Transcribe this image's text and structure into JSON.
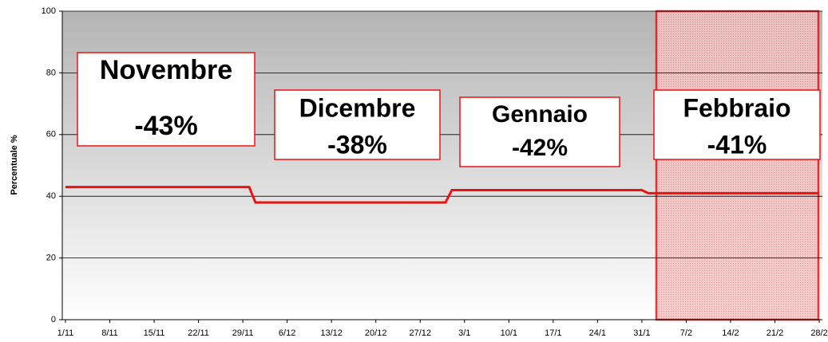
{
  "chart_data": {
    "type": "line",
    "y_label": "Percentuale %",
    "color": "#ee1111",
    "ylim": [
      0,
      100
    ],
    "yticks": [
      0,
      20,
      40,
      60,
      80,
      100
    ],
    "grid": true,
    "categories": [
      "1/11",
      null,
      null,
      null,
      null,
      null,
      null,
      "8/11",
      null,
      null,
      null,
      null,
      null,
      null,
      "15/11",
      null,
      null,
      null,
      null,
      null,
      null,
      "22/11",
      null,
      null,
      null,
      null,
      null,
      null,
      "29/11",
      null,
      null,
      null,
      null,
      null,
      null,
      "6/12",
      null,
      null,
      null,
      null,
      null,
      null,
      "13/12",
      null,
      null,
      null,
      null,
      null,
      null,
      "20/12",
      null,
      null,
      null,
      null,
      null,
      null,
      "27/12",
      null,
      null,
      null,
      null,
      null,
      null,
      "3/1",
      null,
      null,
      null,
      null,
      null,
      null,
      "10/1",
      null,
      null,
      null,
      null,
      null,
      null,
      "17/1",
      null,
      null,
      null,
      null,
      null,
      null,
      "24/1",
      null,
      null,
      null,
      null,
      null,
      null,
      "31/1",
      null,
      null,
      null,
      null,
      null,
      null,
      "7/2",
      null,
      null,
      null,
      null,
      null,
      null,
      "14/2",
      null,
      null,
      null,
      null,
      null,
      null,
      "21/2",
      null,
      null,
      null,
      null,
      null,
      null,
      "28/2"
    ],
    "values": [
      43,
      43,
      43,
      43,
      43,
      43,
      43,
      43,
      43,
      43,
      43,
      43,
      43,
      43,
      43,
      43,
      43,
      43,
      43,
      43,
      43,
      43,
      43,
      43,
      43,
      43,
      43,
      43,
      43,
      43,
      38,
      38,
      38,
      38,
      38,
      38,
      38,
      38,
      38,
      38,
      38,
      38,
      38,
      38,
      38,
      38,
      38,
      38,
      38,
      38,
      38,
      38,
      38,
      38,
      38,
      38,
      38,
      38,
      38,
      38,
      38,
      42,
      42,
      42,
      42,
      42,
      42,
      42,
      42,
      42,
      42,
      42,
      42,
      42,
      42,
      42,
      42,
      42,
      42,
      42,
      42,
      42,
      42,
      42,
      42,
      42,
      42,
      42,
      42,
      42,
      42,
      42,
      41,
      41,
      41,
      41,
      41,
      41,
      41,
      41,
      41,
      41,
      41,
      41,
      41,
      41,
      41,
      41,
      41,
      41,
      41,
      41,
      41,
      41,
      41,
      41,
      41,
      41,
      41,
      41
    ],
    "annotations": [
      {
        "title": "Novembre",
        "text": "-43%",
        "color": "#0000dd"
      },
      {
        "title": "Dicembre",
        "text": "-38%",
        "color": "#0000dd"
      },
      {
        "title": "Gennaio",
        "text": "-42%",
        "color": "#0000dd"
      },
      {
        "title": "Febbraio",
        "text": "-41%",
        "color": "#ff3300"
      }
    ]
  }
}
